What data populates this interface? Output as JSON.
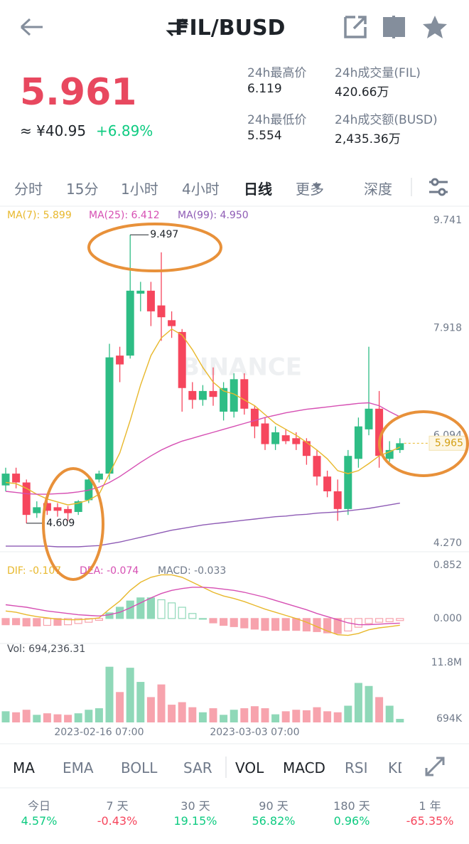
{
  "header": {
    "title": "FIL/BUSD"
  },
  "ticker": {
    "price": "5.961",
    "cny": "≈ ¥40.95",
    "change": "+6.89%"
  },
  "stats": [
    {
      "label": "24h最高价",
      "value": "6.119"
    },
    {
      "label": "24h成交量(FIL)",
      "value": "420.66万"
    },
    {
      "label": "24h最低价",
      "value": "5.554"
    },
    {
      "label": "24h成交额(BUSD)",
      "value": "2,435.36万"
    }
  ],
  "intervals": [
    "分时",
    "15分",
    "1小时",
    "4小时",
    "日线",
    "更多",
    "深度"
  ],
  "chart_data": [
    {
      "type": "candlestick",
      "watermark": "BINANCE",
      "up_color": "#2ebd85",
      "down_color": "#f6465d",
      "categories": [
        null,
        null,
        null,
        null,
        null,
        null,
        null,
        null,
        null,
        "2023-02-16 07:00",
        null,
        null,
        null,
        null,
        null,
        null,
        null,
        null,
        null,
        null,
        null,
        null,
        null,
        null,
        "2023-03-03 07:00",
        null,
        null,
        null,
        null,
        null,
        null,
        null,
        null,
        null,
        null,
        null,
        null,
        null,
        null
      ],
      "open": [
        5.25,
        5.45,
        5.3,
        4.78,
        4.95,
        4.88,
        4.85,
        4.8,
        5.0,
        5.35,
        5.45,
        7.45,
        7.45,
        8.5,
        8.55,
        8.3,
        8.05,
        7.85,
        6.85,
        6.7,
        6.85,
        6.5,
        6.5,
        7.05,
        6.55,
        6.3,
        5.95,
        6.1,
        6.05,
        6.0,
        5.75,
        5.4,
        5.15,
        4.85,
        5.7,
        6.2,
        6.55,
        5.7,
        5.85
      ],
      "high": [
        5.55,
        5.55,
        5.35,
        4.98,
        5.05,
        4.95,
        4.9,
        5.0,
        5.4,
        5.5,
        7.65,
        7.6,
        9.497,
        8.7,
        8.7,
        9.2,
        8.2,
        7.9,
        7.0,
        6.95,
        7.25,
        7.0,
        7.15,
        7.15,
        6.6,
        6.4,
        6.25,
        6.2,
        6.15,
        6.05,
        5.85,
        5.5,
        5.35,
        5.85,
        6.4,
        7.6,
        6.85,
        6.0,
        6.05
      ],
      "low": [
        5.15,
        5.2,
        4.609,
        4.7,
        4.75,
        4.72,
        4.65,
        4.75,
        4.95,
        5.3,
        5.35,
        7.0,
        7.4,
        8.2,
        7.95,
        7.7,
        7.75,
        6.5,
        6.55,
        6.6,
        6.6,
        6.35,
        6.4,
        6.45,
        6.05,
        5.85,
        5.85,
        5.95,
        5.85,
        5.6,
        5.25,
        5.05,
        4.65,
        4.75,
        5.55,
        6.1,
        5.55,
        5.65,
        5.8
      ],
      "close": [
        5.45,
        5.3,
        4.75,
        4.88,
        4.82,
        4.82,
        4.78,
        4.98,
        5.35,
        5.45,
        7.42,
        7.3,
        8.55,
        8.55,
        8.2,
        8.1,
        7.95,
        6.9,
        6.7,
        6.85,
        6.75,
        6.9,
        7.05,
        6.55,
        6.25,
        5.95,
        6.15,
        6.0,
        5.95,
        5.75,
        5.4,
        5.15,
        4.85,
        5.75,
        6.25,
        6.55,
        5.75,
        5.85,
        5.965
      ],
      "series": [
        {
          "name": "MA(7): 5.899",
          "color": "#e8b82c",
          "values": [
            5.3,
            5.28,
            5.2,
            5.1,
            5.02,
            4.97,
            4.92,
            4.95,
            5.0,
            5.1,
            5.45,
            5.8,
            6.35,
            6.95,
            7.45,
            7.75,
            7.9,
            7.8,
            7.55,
            7.25,
            7.0,
            6.85,
            6.8,
            6.7,
            6.6,
            6.45,
            6.3,
            6.2,
            6.1,
            5.98,
            5.85,
            5.7,
            5.5,
            5.45,
            5.5,
            5.62,
            5.75,
            5.82,
            5.899
          ]
        },
        {
          "name": "MA(25): 6.412",
          "color": "#d64fb3",
          "values": [
            5.15,
            5.13,
            5.11,
            5.1,
            5.1,
            5.11,
            5.12,
            5.14,
            5.17,
            5.22,
            5.3,
            5.4,
            5.52,
            5.64,
            5.75,
            5.85,
            5.93,
            6.0,
            6.05,
            6.1,
            6.15,
            6.2,
            6.25,
            6.3,
            6.35,
            6.4,
            6.44,
            6.48,
            6.51,
            6.54,
            6.56,
            6.58,
            6.6,
            6.62,
            6.64,
            6.65,
            6.6,
            6.5,
            6.412
          ]
        },
        {
          "name": "MA(99): 4.950",
          "color": "#8e5bb5",
          "values": [
            4.22,
            4.22,
            4.22,
            4.22,
            4.22,
            4.21,
            4.21,
            4.21,
            4.22,
            4.23,
            4.26,
            4.29,
            4.33,
            4.37,
            4.41,
            4.45,
            4.49,
            4.52,
            4.55,
            4.58,
            4.6,
            4.62,
            4.64,
            4.66,
            4.68,
            4.7,
            4.72,
            4.73,
            4.75,
            4.76,
            4.78,
            4.79,
            4.8,
            4.82,
            4.84,
            4.86,
            4.89,
            4.92,
            4.95
          ]
        }
      ],
      "ylim": [
        4.27,
        9.741
      ],
      "yticks": [
        9.741,
        7.918,
        6.094,
        {
          "value": 4.27,
          "label": "4.270"
        }
      ]
    },
    {
      "type": "macd",
      "series": [
        {
          "name": "DIF: -0.107",
          "color": "#e8b82c",
          "values": [
            0.12,
            0.1,
            0.06,
            0.03,
            0.01,
            -0.01,
            -0.02,
            -0.02,
            -0.01,
            0.01,
            0.15,
            0.28,
            0.45,
            0.58,
            0.66,
            0.7,
            0.7,
            0.66,
            0.58,
            0.5,
            0.42,
            0.36,
            0.32,
            0.27,
            0.21,
            0.15,
            0.1,
            0.05,
            0.0,
            -0.06,
            -0.13,
            -0.2,
            -0.26,
            -0.27,
            -0.24,
            -0.18,
            -0.15,
            -0.13,
            -0.107
          ]
        },
        {
          "name": "DEA: -0.074",
          "color": "#d64fb3",
          "values": [
            0.22,
            0.2,
            0.18,
            0.15,
            0.12,
            0.1,
            0.08,
            0.06,
            0.05,
            0.04,
            0.06,
            0.1,
            0.17,
            0.25,
            0.33,
            0.4,
            0.45,
            0.48,
            0.5,
            0.5,
            0.49,
            0.47,
            0.45,
            0.42,
            0.38,
            0.34,
            0.29,
            0.24,
            0.19,
            0.14,
            0.08,
            0.03,
            -0.02,
            -0.07,
            -0.1,
            -0.1,
            -0.09,
            -0.08,
            -0.074
          ]
        },
        {
          "name": "MACD: -0.033",
          "color": "#707a8a",
          "values": [
            -0.1,
            -0.1,
            -0.12,
            -0.12,
            -0.11,
            -0.11,
            -0.1,
            -0.08,
            -0.06,
            -0.03,
            0.09,
            0.18,
            0.28,
            0.33,
            0.33,
            0.3,
            0.25,
            0.18,
            0.08,
            0.0,
            -0.07,
            -0.11,
            -0.13,
            -0.15,
            -0.17,
            -0.19,
            -0.19,
            -0.19,
            -0.19,
            -0.2,
            -0.21,
            -0.23,
            -0.24,
            -0.2,
            -0.14,
            -0.08,
            -0.06,
            -0.05,
            -0.033
          ]
        }
      ],
      "ylim": [
        -0.4,
        0.852
      ],
      "yticks": [
        0.852,
        {
          "value": 0,
          "label": "0.000"
        }
      ]
    },
    {
      "type": "volume",
      "series": [
        {
          "name": "Vol: 694,236.31",
          "values": [
            2200000,
            2000000,
            2500000,
            1500000,
            1800000,
            1600000,
            1500000,
            1800000,
            2500000,
            2800000,
            11000000,
            6000000,
            10800000,
            8000000,
            5000000,
            7500000,
            3500000,
            4000000,
            3000000,
            2000000,
            2800000,
            1500000,
            2500000,
            2800000,
            3200000,
            2800000,
            1600000,
            2200000,
            2500000,
            2400000,
            3000000,
            2200000,
            2000000,
            3300000,
            7800000,
            7200000,
            5000000,
            3300000,
            694236.31
          ]
        }
      ],
      "ylim": [
        0,
        11800000
      ],
      "yticks": [
        {
          "value": 11800000,
          "label": "11.8M"
        },
        {
          "value": 694000,
          "label": "694K"
        }
      ]
    }
  ],
  "indicators": {
    "main": [
      "MA",
      "EMA",
      "BOLL",
      "SAR"
    ],
    "sub": [
      "VOL",
      "MACD",
      "RSI",
      "KDJ"
    ]
  },
  "performance": [
    {
      "period": "今日",
      "change": "4.57%"
    },
    {
      "period": "7 天",
      "change": "-0.43%"
    },
    {
      "period": "30 天",
      "change": "19.15%"
    },
    {
      "period": "90 天",
      "change": "56.82%"
    },
    {
      "period": "180 天",
      "change": "0.96%"
    },
    {
      "period": "1 年",
      "change": "-65.35%"
    }
  ]
}
